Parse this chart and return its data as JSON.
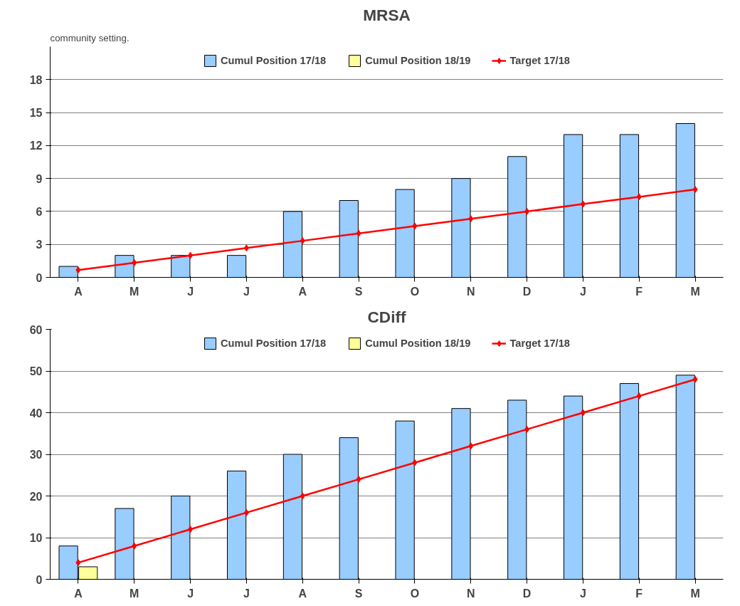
{
  "chart_data": [
    {
      "type": "bar",
      "title": "MRSA",
      "annotations": [
        "community setting."
      ],
      "categories": [
        "A",
        "M",
        "J",
        "J",
        "A",
        "S",
        "O",
        "N",
        "D",
        "J",
        "F",
        "M"
      ],
      "series": [
        {
          "name": "Cumul Position 17/18",
          "color": "#99ccff",
          "values": [
            1,
            2,
            2,
            2,
            6,
            7,
            8,
            9,
            11,
            13,
            13,
            14
          ]
        },
        {
          "name": "Cumul Position 18/19",
          "color": "#ffff99",
          "values": [
            null,
            null,
            null,
            null,
            null,
            null,
            null,
            null,
            null,
            null,
            null,
            null
          ]
        },
        {
          "name": "Target 17/18",
          "type": "line",
          "color": "#ff0000",
          "marker": "diamond",
          "values": [
            0.67,
            1.33,
            2,
            2.67,
            3.33,
            4,
            4.67,
            5.33,
            6,
            6.67,
            7.33,
            8
          ]
        }
      ],
      "ylim": [
        0,
        21
      ],
      "yticks": [
        0,
        3,
        6,
        9,
        12,
        15,
        18
      ],
      "grid": "y",
      "legend": "top"
    },
    {
      "type": "bar",
      "title": "CDiff",
      "categories": [
        "A",
        "M",
        "J",
        "J",
        "A",
        "S",
        "O",
        "N",
        "D",
        "J",
        "F",
        "M"
      ],
      "series": [
        {
          "name": "Cumul Position 17/18",
          "color": "#99ccff",
          "values": [
            8,
            17,
            20,
            26,
            30,
            34,
            38,
            41,
            43,
            44,
            47,
            49
          ]
        },
        {
          "name": "Cumul Position 18/19",
          "color": "#ffff99",
          "values": [
            3,
            null,
            null,
            null,
            null,
            null,
            null,
            null,
            null,
            null,
            null,
            null
          ]
        },
        {
          "name": "Target 17/18",
          "type": "line",
          "color": "#ff0000",
          "marker": "diamond",
          "values": [
            4,
            8,
            12,
            16,
            20,
            24,
            28,
            32,
            36,
            40,
            44,
            48
          ]
        }
      ],
      "ylim": [
        0,
        60
      ],
      "yticks": [
        0,
        10,
        20,
        30,
        40,
        50,
        60
      ],
      "grid": "y",
      "legend": "top"
    }
  ]
}
